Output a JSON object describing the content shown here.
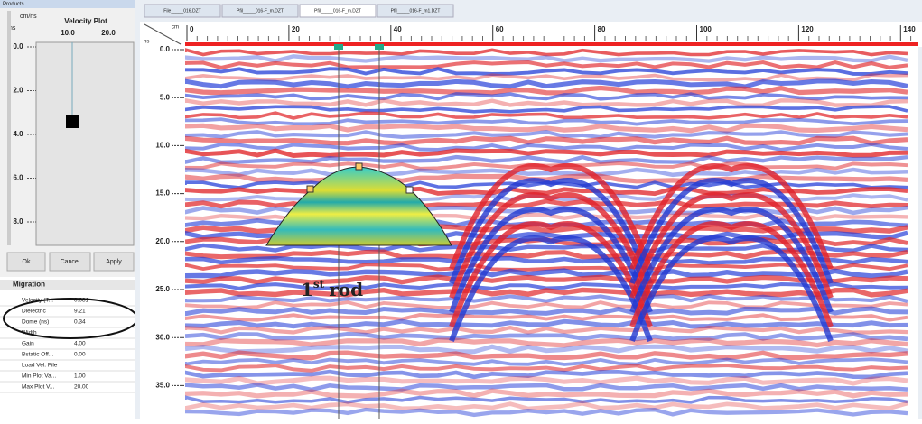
{
  "tabs": [
    "File_____016.DZT",
    "Pfil_____016-F_m.DZT",
    "Pfil_____016-F_m.DZT",
    "Pfil_____016-F_m1.DZT"
  ],
  "left_panel": {
    "header": "Products",
    "unit": "cm/ns",
    "time_unit": "ns",
    "title": "Velocity Plot",
    "top_ticks": [
      "10.0",
      "20.0"
    ],
    "side_ticks": [
      "0.0",
      "2.0",
      "4.0",
      "6.0",
      "8.0"
    ],
    "buttons": [
      "Ok",
      "Cancel",
      "Apply"
    ],
    "properties": {
      "title": "Migration",
      "rows": [
        [
          "Velocity (T...",
          "0.081"
        ],
        [
          "Dielectric",
          "9.21"
        ],
        [
          "Dome (ns)",
          "0.34"
        ],
        [
          "Width",
          ""
        ],
        [
          "Gain",
          "4.00"
        ],
        [
          "Bstatic Off...",
          "0.00"
        ],
        [
          "Load Vel. File",
          ""
        ],
        [
          "Min Plot Va...",
          "1.00"
        ],
        [
          "Max Plot V...",
          "20.00"
        ]
      ]
    }
  },
  "radargram": {
    "x_unit": "cm",
    "y_unit": "ns",
    "x_ticks": [
      "0",
      "20",
      "40",
      "60",
      "80",
      "100",
      "120",
      "140"
    ],
    "y_ticks": [
      "0.0",
      "5.0",
      "10.0",
      "15.0",
      "20.0",
      "25.0",
      "30.0",
      "35.0"
    ],
    "annotation": {
      "text": "1",
      "sup": "st",
      "rest": "rod"
    }
  }
}
